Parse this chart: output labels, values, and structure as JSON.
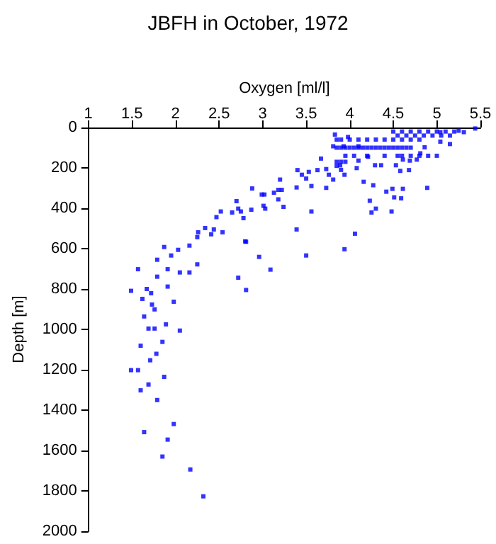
{
  "chart_data": {
    "type": "scatter",
    "title": "JBFH in October, 1972",
    "xlabel": "Oxygen [ml/l]",
    "ylabel": "Depth [m]",
    "xlim": [
      1,
      5.5
    ],
    "xticks": [
      1,
      1.5,
      2,
      2.5,
      3,
      3.5,
      4,
      4.5,
      5,
      5.5
    ],
    "ylim": [
      2000,
      0
    ],
    "yticks": [
      0,
      200,
      400,
      600,
      800,
      1000,
      1200,
      1400,
      1600,
      1800,
      2000
    ],
    "grid": false,
    "marker": "square",
    "series": [
      {
        "color": "#0000ff",
        "x": [
          1.87,
          2.03,
          2.16,
          1.95,
          1.79,
          1.57,
          1.91,
          2.25,
          2.05,
          2.16,
          1.79,
          2.72,
          3.09,
          3.5,
          2.96,
          2.81,
          2.81,
          1.49,
          1.67,
          1.91,
          1.72,
          1.62,
          1.73,
          1.76,
          1.98,
          1.64,
          1.69,
          1.76,
          1.89,
          2.05,
          1.85,
          1.6,
          1.78,
          1.71,
          1.49,
          1.57,
          1.87,
          1.69,
          1.6,
          1.79,
          1.98,
          1.64,
          1.91,
          1.85,
          2.17,
          2.32,
          2.25,
          2.41,
          2.26,
          2.34,
          2.44,
          2.54,
          2.8,
          2.52,
          2.47,
          2.65,
          2.7,
          2.72,
          2.78,
          2.75,
          2.87,
          2.88,
          2.99,
          3.02,
          3.01,
          3.03,
          3.13,
          3.18,
          3.22,
          3.2,
          3.18,
          3.24,
          3.39,
          3.4,
          3.45,
          3.56,
          3.39,
          3.5,
          3.53,
          3.56,
          3.63,
          3.67,
          3.73,
          3.76,
          3.73,
          3.81,
          3.81,
          3.83,
          3.89,
          3.94,
          3.94,
          4.06,
          3.93,
          3.98,
          4.1,
          4.1,
          4.08,
          4.16,
          4.21,
          4.23,
          4.27,
          4.25,
          4.29,
          4.3,
          4.36,
          4.42,
          4.48,
          4.49,
          4.51,
          4.59,
          4.61,
          4.53,
          4.58,
          4.68,
          4.61,
          4.69,
          4.77,
          4.81,
          4.86,
          4.89,
          5.04,
          5.15,
          5.04,
          5.25,
          5.31,
          5.44,
          3.85,
          3.9,
          3.95,
          4.0,
          4.05,
          4.1,
          4.15,
          4.2,
          4.25,
          4.3,
          4.35,
          4.4,
          4.45,
          4.5,
          4.55,
          4.6,
          4.65,
          4.7,
          3.85,
          3.9,
          4.0,
          4.1,
          4.2,
          4.3,
          4.4,
          4.5,
          4.6,
          4.7,
          4.8,
          3.95,
          4.05,
          4.2,
          4.4,
          4.55,
          4.6,
          4.7,
          4.8,
          4.9,
          5.0,
          4.5,
          4.6,
          4.7,
          4.8,
          4.9,
          5.0,
          5.1,
          5.2,
          4.55,
          4.65,
          4.75,
          4.85,
          4.95,
          5.05,
          5.15,
          3.85,
          3.9,
          3.95,
          3.85,
          3.9
        ],
        "values": [
          592,
          606,
          585,
          634,
          655,
          702,
          702,
          678,
          718,
          718,
          739,
          744,
          704,
          634,
          641,
          566,
          805,
          809,
          800,
          788,
          821,
          849,
          877,
          901,
          863,
          936,
          996,
          996,
          975,
          1006,
          1062,
          1081,
          1121,
          1153,
          1202,
          1202,
          1235,
          1273,
          1302,
          1350,
          1469,
          1509,
          1546,
          1630,
          1694,
          1827,
          543,
          529,
          519,
          498,
          505,
          519,
          564,
          416,
          444,
          421,
          365,
          402,
          449,
          416,
          407,
          302,
          332,
          332,
          388,
          402,
          323,
          309,
          309,
          258,
          356,
          393,
          297,
          211,
          234,
          416,
          505,
          253,
          220,
          290,
          211,
          154,
          206,
          234,
          299,
          258,
          93,
          35,
          187,
          234,
          603,
          526,
          93,
          47,
          93,
          164,
          201,
          269,
          145,
          363,
          286,
          421,
          187,
          402,
          187,
          318,
          416,
          304,
          346,
          351,
          304,
          187,
          215,
          211,
          159,
          164,
          159,
          128,
          98,
          299,
          70,
          82,
          23,
          16,
          23,
          5,
          100,
          100,
          100,
          100,
          100,
          100,
          100,
          100,
          100,
          100,
          100,
          100,
          100,
          100,
          100,
          100,
          100,
          100,
          60,
          60,
          60,
          60,
          60,
          60,
          60,
          60,
          60,
          60,
          60,
          140,
          140,
          140,
          140,
          140,
          140,
          140,
          140,
          140,
          140,
          20,
          20,
          20,
          20,
          20,
          20,
          20,
          20,
          40,
          40,
          40,
          40,
          40,
          40,
          40,
          170,
          170,
          170,
          190,
          210
        ]
      }
    ]
  }
}
